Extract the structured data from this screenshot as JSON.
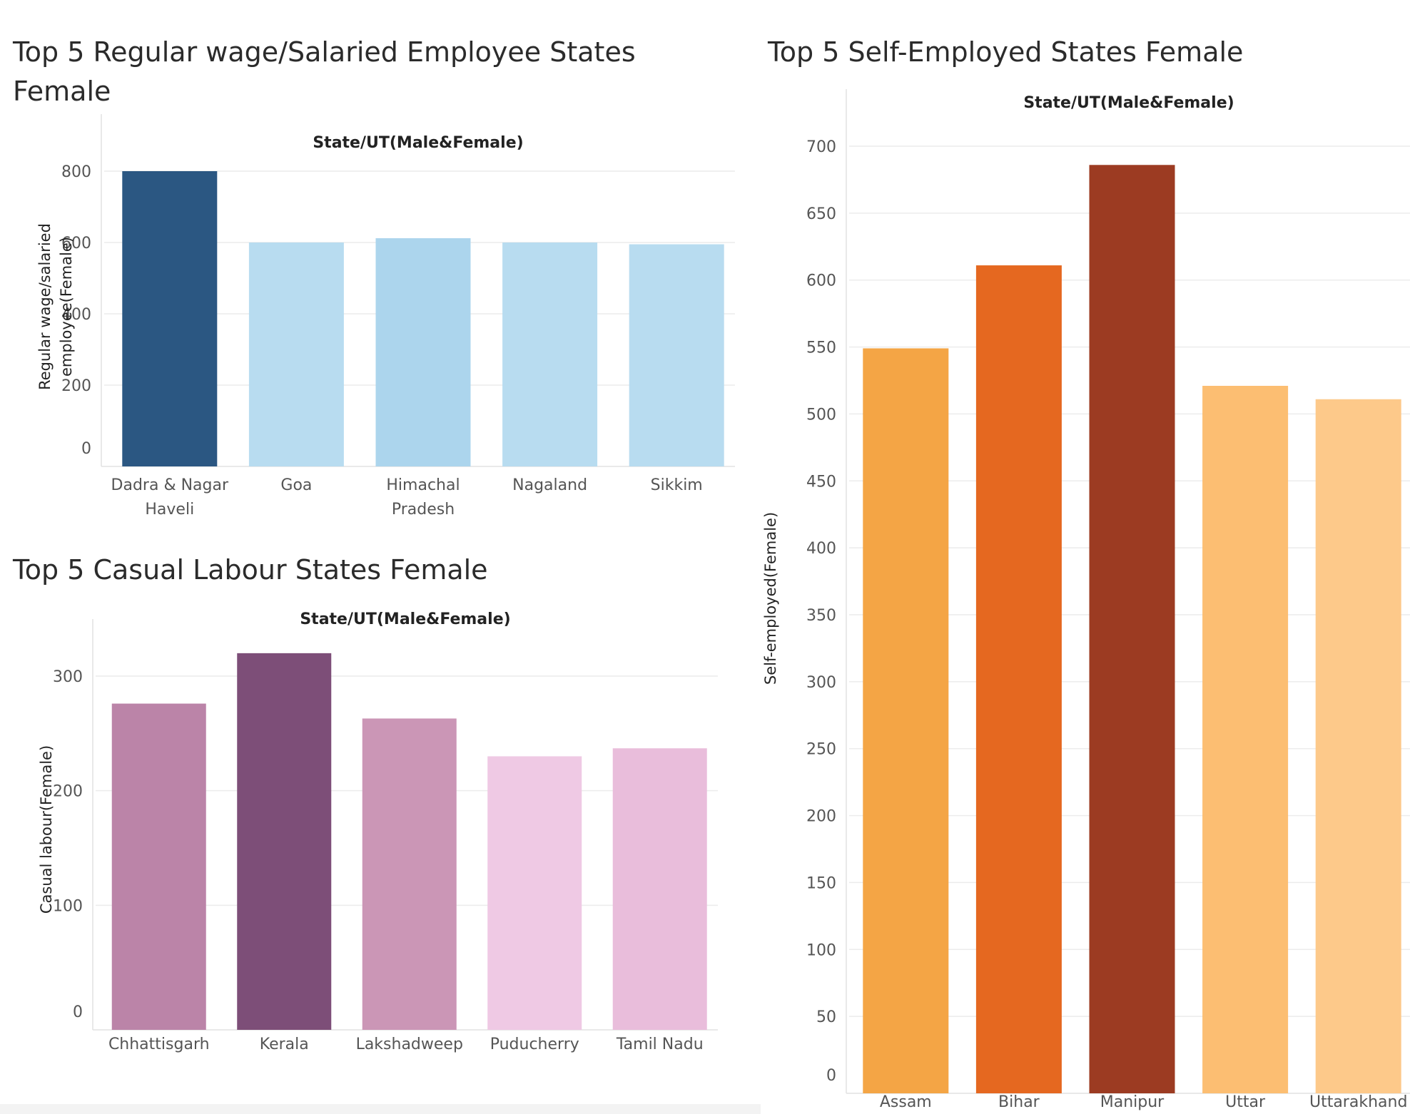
{
  "charts": [
    {
      "id": "regular",
      "title_lines": [
        "Top 5 Regular wage/Salaried Employee States",
        "Female"
      ],
      "header": "State/UT(Male&Female)",
      "ylabel_lines": [
        "Regular wage/salaried",
        "employee(Female)"
      ],
      "colors": [
        "#2b5782",
        "#b8dcf0",
        "#acd5ed",
        "#b8dcf0",
        "#b8dcf0"
      ]
    },
    {
      "id": "casual",
      "title_lines": [
        "Top 5 Casual Labour States Female"
      ],
      "header": "State/UT(Male&Female)",
      "ylabel_lines": [
        "Casual labour(Female)"
      ],
      "colors": [
        "#bb84a8",
        "#7d4e78",
        "#cb96b6",
        "#efc9e4",
        "#e9bddb"
      ]
    },
    {
      "id": "self",
      "title_lines": [
        "Top 5 Self-Employed States Female"
      ],
      "header": "State/UT(Male&Female)",
      "ylabel_lines": [
        "Self-employed(Female)"
      ],
      "colors": [
        "#f4a545",
        "#e56820",
        "#9c3b22",
        "#fcbe72",
        "#fdc98a"
      ]
    }
  ],
  "chart_data": [
    {
      "type": "bar",
      "title": "Top 5 Regular wage/Salaried Employee States Female",
      "xlabel": "State/UT(Male&Female)",
      "ylabel": "Regular wage/salaried employee(Female)",
      "categories": [
        [
          "Dadra & Nagar",
          "Haveli"
        ],
        [
          "Goa"
        ],
        [
          "Himachal",
          "Pradesh"
        ],
        [
          "Nagaland"
        ],
        [
          "Sikkim"
        ]
      ],
      "values": [
        800,
        600,
        612,
        600,
        595
      ],
      "ylim": [
        0,
        800
      ],
      "yticks": [
        0,
        200,
        400,
        600,
        800
      ],
      "grid": true,
      "legend": "none"
    },
    {
      "type": "bar",
      "title": "Top 5 Casual Labour States Female",
      "xlabel": "State/UT(Male&Female)",
      "ylabel": "Casual labour(Female)",
      "categories": [
        [
          "Chhattisgarh"
        ],
        [
          "Kerala"
        ],
        [
          "Lakshadweep"
        ],
        [
          "Puducherry"
        ],
        [
          "Tamil Nadu"
        ]
      ],
      "values": [
        276,
        320,
        263,
        230,
        237
      ],
      "ylim": [
        0,
        300
      ],
      "yticks": [
        0,
        100,
        200,
        300
      ],
      "grid": true,
      "legend": "none"
    },
    {
      "type": "bar",
      "title": "Top 5 Self-Employed States Female",
      "xlabel": "State/UT(Male&Female)",
      "ylabel": "Self-employed(Female)",
      "categories": [
        [
          "Assam"
        ],
        [
          "Bihar"
        ],
        [
          "Manipur"
        ],
        [
          "Uttar"
        ],
        [
          "Uttarakhand"
        ]
      ],
      "values": [
        549,
        611,
        686,
        521,
        511
      ],
      "ylim": [
        0,
        700
      ],
      "yticks": [
        0,
        50,
        100,
        150,
        200,
        250,
        300,
        350,
        400,
        450,
        500,
        550,
        600,
        650,
        700
      ],
      "grid": true,
      "legend": "none"
    }
  ]
}
